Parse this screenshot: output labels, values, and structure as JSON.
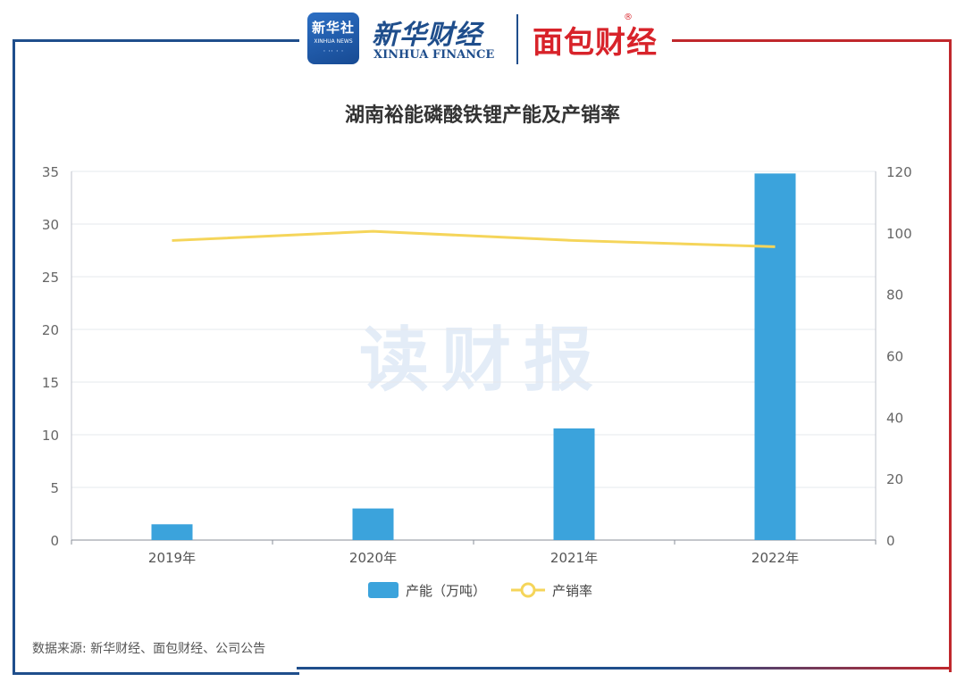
{
  "logos": {
    "xinhua_badge_cn": "新华社",
    "xinhua_badge_en": "XINHUA NEWS",
    "xinhua_wordmark_cn": "新华财经",
    "xinhua_wordmark_en": "XINHUA FINANCE",
    "mianbao_wordmark": "面包财经",
    "mianbao_reg_mark": "®"
  },
  "watermark": "读财报",
  "source_note": "数据来源: 新华财经、面包财经、公司公告",
  "colors": {
    "bar": "#3ba3dc",
    "line": "#f5d55a",
    "frame_blue": "#1f4e8c",
    "frame_red": "#c0282d",
    "watermark": "#e3ecf7"
  },
  "chart_data": {
    "type": "bar",
    "title": "湖南裕能磷酸铁锂产能及产销率",
    "categories": [
      "2019年",
      "2020年",
      "2021年",
      "2022年"
    ],
    "series": [
      {
        "name": "产能（万吨）",
        "type": "bar",
        "axis": "left",
        "values": [
          1.5,
          3.0,
          10.6,
          34.8
        ]
      },
      {
        "name": "产销率",
        "type": "line",
        "axis": "right",
        "values": [
          97.5,
          100.5,
          97.5,
          95.5
        ]
      }
    ],
    "y_left": {
      "ticks": [
        "0",
        "5",
        "10",
        "15",
        "20",
        "25",
        "30",
        "35"
      ],
      "ylim": [
        0,
        35
      ]
    },
    "y_right": {
      "ticks": [
        "0",
        "20",
        "40",
        "60",
        "80",
        "100",
        "120"
      ],
      "ylim": [
        0,
        120
      ]
    },
    "grid": true,
    "legend_position": "bottom-center"
  }
}
